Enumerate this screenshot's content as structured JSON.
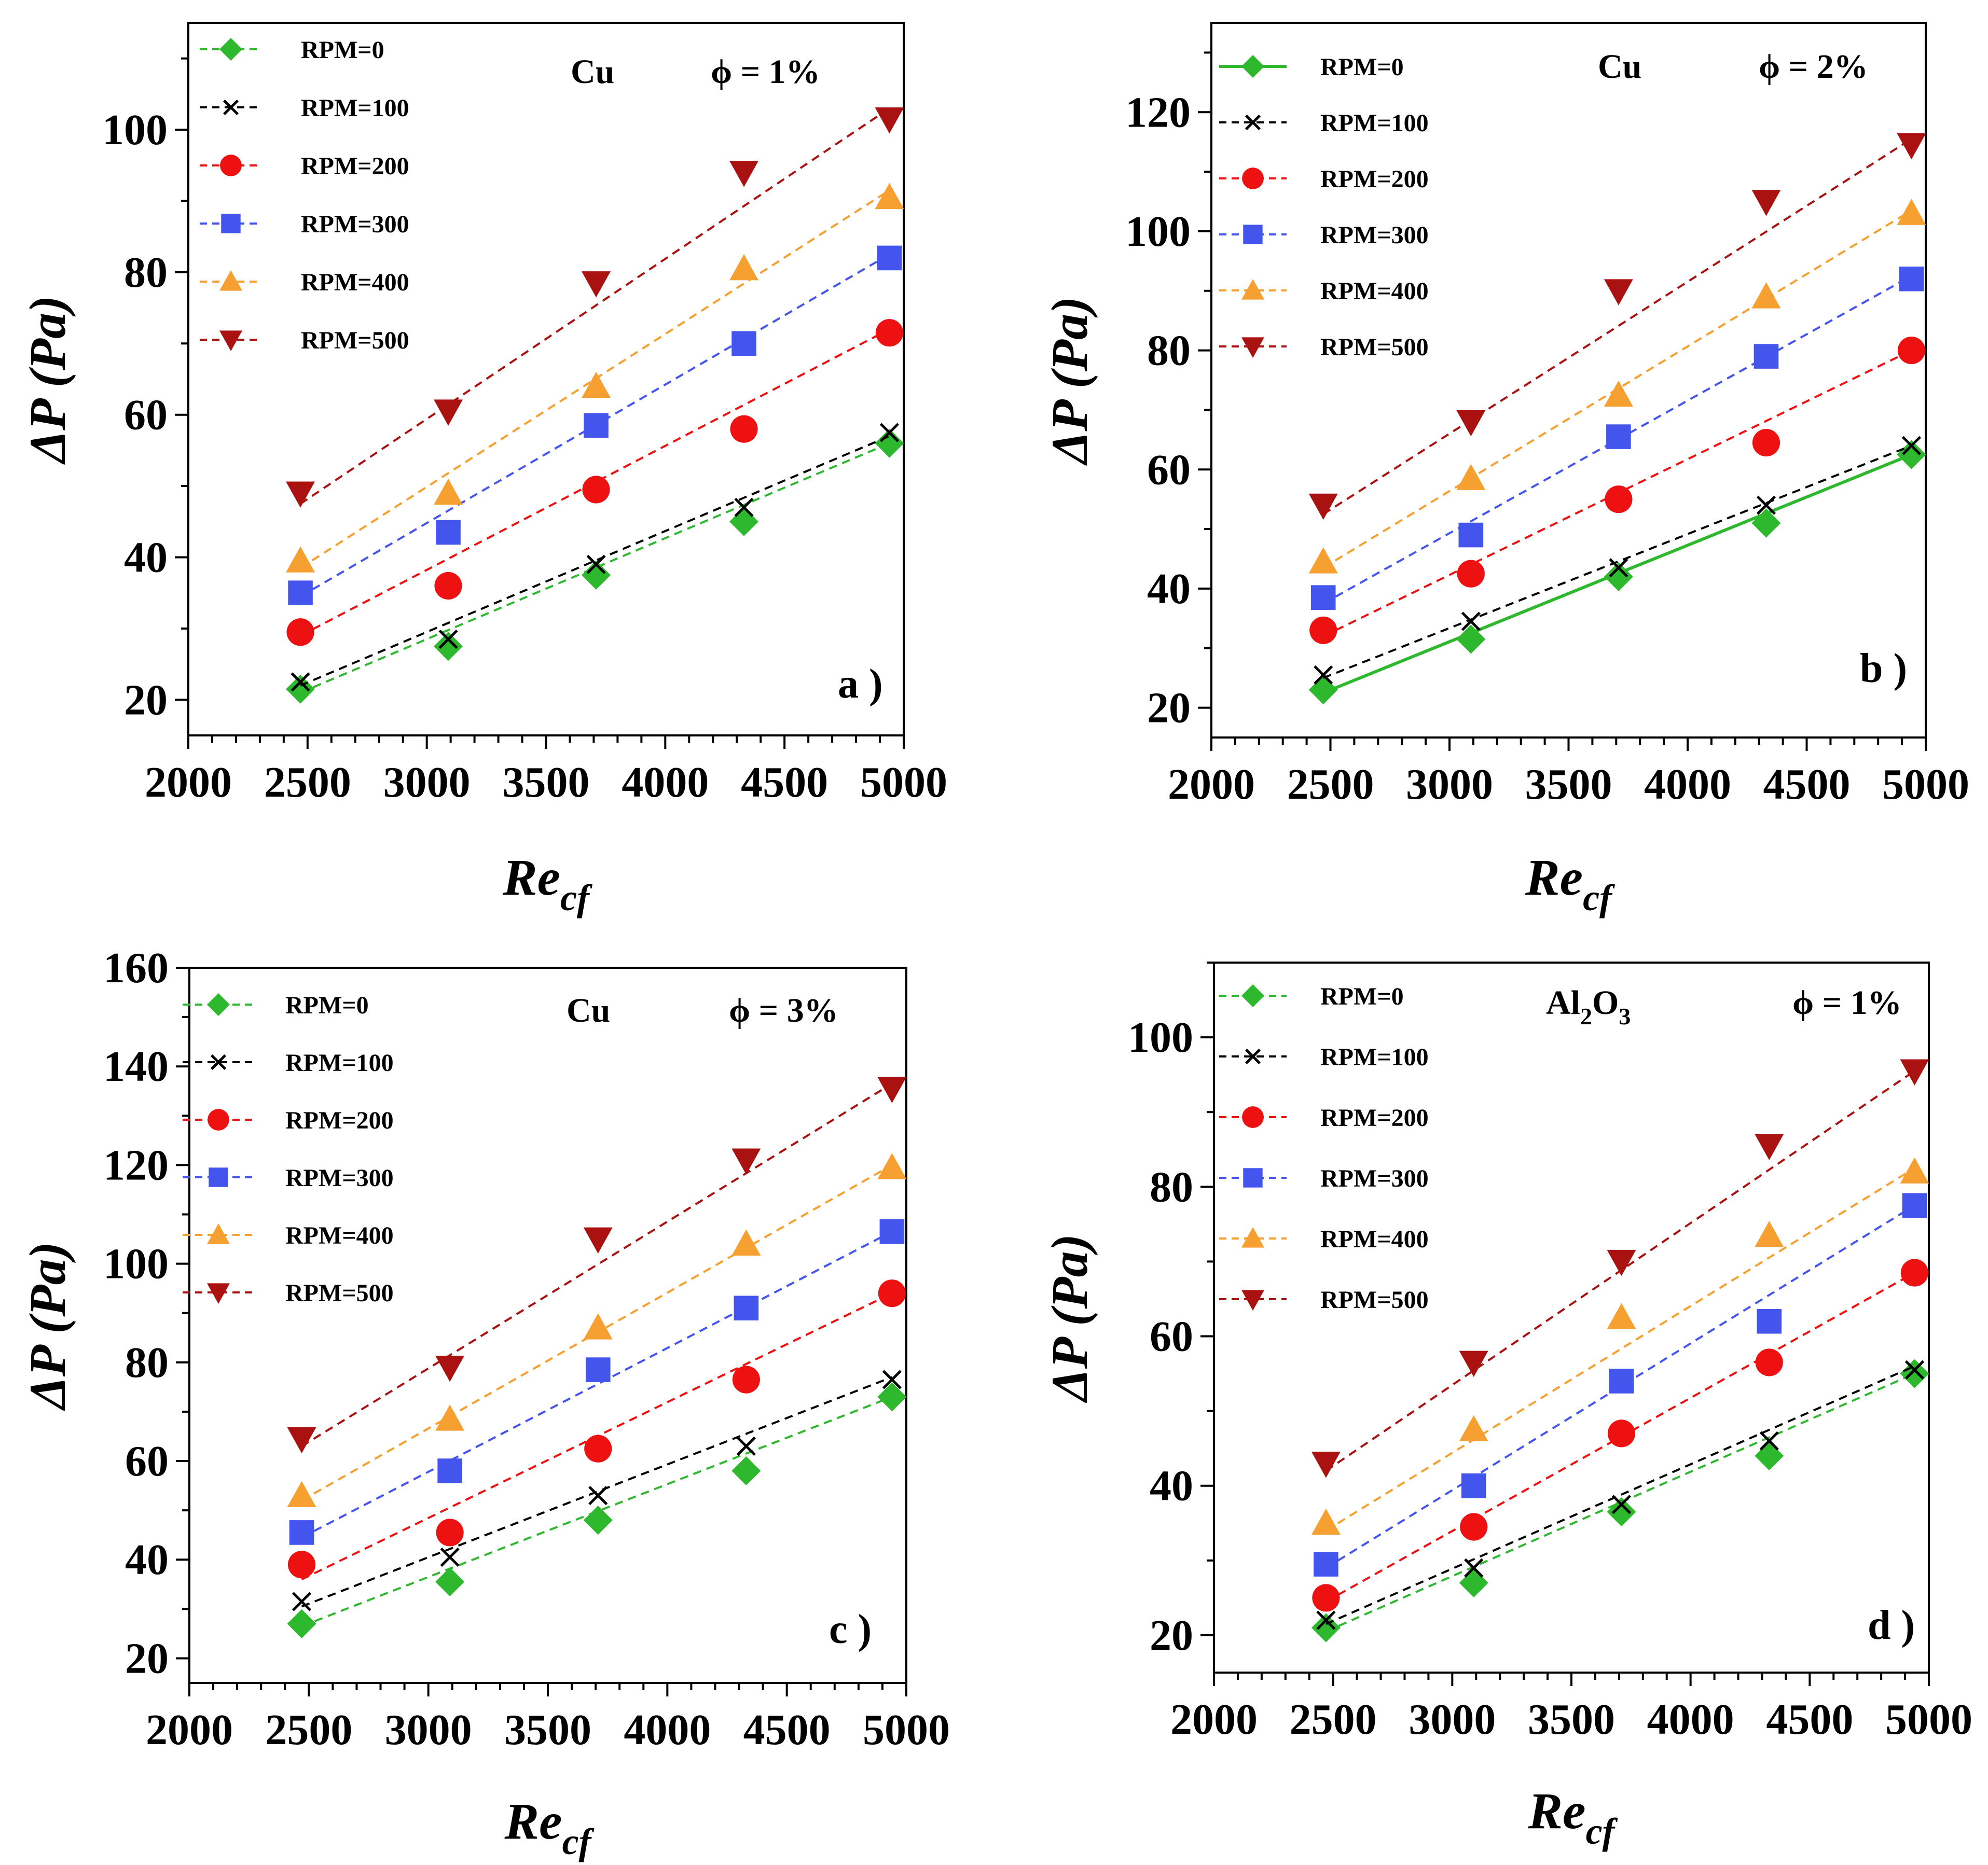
{
  "chart_data": [
    {
      "type": "scatter",
      "panel_label": "a )",
      "material": "Cu",
      "material_sub": "",
      "material_tail": "",
      "phi": "ϕ = 1%",
      "xlabel": "Re",
      "xlabel_sub": "cf",
      "ylabel": "ΔP (Pa)",
      "xlim": [
        2000,
        5000
      ],
      "ylim": [
        15,
        115
      ],
      "xticks": [
        2000,
        2500,
        3000,
        3500,
        4000,
        4500,
        5000
      ],
      "yticks": [
        20,
        40,
        60,
        80,
        100
      ],
      "x": [
        2470,
        3090,
        3710,
        4330,
        4940
      ],
      "series": [
        {
          "name": "RPM=0",
          "marker": "diamond",
          "color": "#2eb82e",
          "line": "dashed",
          "values": [
            21.5,
            27.5,
            37.5,
            45.0,
            56.0
          ],
          "fit": [
            21.0,
            56.0
          ]
        },
        {
          "name": "RPM=100",
          "marker": "x",
          "color": "#000000",
          "line": "dashed",
          "values": [
            22.5,
            28.5,
            39.0,
            47.0,
            57.5
          ],
          "fit": [
            22.0,
            57.0
          ]
        },
        {
          "name": "RPM=200",
          "marker": "circle",
          "color": "#ee1111",
          "line": "dashed",
          "values": [
            29.5,
            36.0,
            49.5,
            58.0,
            71.5
          ],
          "fit": [
            29.0,
            72.0
          ]
        },
        {
          "name": "RPM=300",
          "marker": "square",
          "color": "#4455ee",
          "line": "dashed",
          "values": [
            35.0,
            43.5,
            58.5,
            70.0,
            82.0
          ],
          "fit": [
            34.5,
            82.5
          ]
        },
        {
          "name": "RPM=400",
          "marker": "triangle-up",
          "color": "#f5a030",
          "line": "dashed",
          "values": [
            39.5,
            49.0,
            64.0,
            80.5,
            90.5
          ],
          "fit": [
            38.5,
            91.5
          ]
        },
        {
          "name": "RPM=500",
          "marker": "triangle-down",
          "color": "#aa1111",
          "line": "dashed",
          "values": [
            49.0,
            60.5,
            78.5,
            94.0,
            101.5
          ],
          "fit": [
            47.5,
            103.0
          ]
        }
      ]
    },
    {
      "type": "scatter",
      "panel_label": "b )",
      "material": "Cu",
      "material_sub": "",
      "material_tail": "",
      "phi": "ϕ = 2%",
      "xlabel": "Re",
      "xlabel_sub": "cf",
      "ylabel": "ΔP (Pa)",
      "xlim": [
        2000,
        5000
      ],
      "ylim": [
        15,
        135
      ],
      "xticks": [
        2000,
        2500,
        3000,
        3500,
        4000,
        4500,
        5000
      ],
      "yticks": [
        20,
        40,
        60,
        80,
        100,
        120
      ],
      "x": [
        2470,
        3090,
        3710,
        4330,
        4940
      ],
      "series": [
        {
          "name": "RPM=0",
          "marker": "diamond",
          "color": "#2eb82e",
          "line": "solid",
          "values": [
            23.0,
            31.5,
            42.0,
            51.0,
            62.5
          ],
          "fit": [
            22.5,
            62.5
          ]
        },
        {
          "name": "RPM=100",
          "marker": "x",
          "color": "#000000",
          "line": "dashed",
          "values": [
            25.5,
            34.5,
            43.5,
            54.0,
            64.0
          ],
          "fit": [
            25.0,
            64.0
          ]
        },
        {
          "name": "RPM=200",
          "marker": "circle",
          "color": "#ee1111",
          "line": "dashed",
          "values": [
            33.0,
            42.5,
            55.0,
            64.5,
            80.0
          ],
          "fit": [
            32.0,
            80.0
          ]
        },
        {
          "name": "RPM=300",
          "marker": "square",
          "color": "#4455ee",
          "line": "dashed",
          "values": [
            38.5,
            49.0,
            65.5,
            79.0,
            92.0
          ],
          "fit": [
            37.5,
            92.5
          ]
        },
        {
          "name": "RPM=400",
          "marker": "triangle-up",
          "color": "#f5a030",
          "line": "dashed",
          "values": [
            44.5,
            58.5,
            72.5,
            89.0,
            103.0
          ],
          "fit": [
            43.5,
            103.5
          ]
        },
        {
          "name": "RPM=500",
          "marker": "triangle-down",
          "color": "#aa1111",
          "line": "dashed",
          "values": [
            54.0,
            68.0,
            90.0,
            105.0,
            114.5
          ],
          "fit": [
            52.5,
            115.5
          ]
        }
      ]
    },
    {
      "type": "scatter",
      "panel_label": "c )",
      "material": "Cu",
      "material_sub": "",
      "material_tail": "",
      "phi": "ϕ = 3%",
      "xlabel": "Re",
      "xlabel_sub": "cf",
      "ylabel": "ΔP (Pa)",
      "xlim": [
        2000,
        5000
      ],
      "ylim": [
        15,
        160
      ],
      "xticks": [
        2000,
        2500,
        3000,
        3500,
        4000,
        4500,
        5000
      ],
      "yticks": [
        20,
        40,
        60,
        80,
        100,
        120,
        140,
        160
      ],
      "x": [
        2470,
        3090,
        3710,
        4330,
        4940
      ],
      "series": [
        {
          "name": "RPM=0",
          "marker": "diamond",
          "color": "#2eb82e",
          "line": "dashed",
          "values": [
            27.0,
            35.5,
            48.0,
            58.0,
            73.0
          ],
          "fit": [
            26.5,
            73.0
          ]
        },
        {
          "name": "RPM=100",
          "marker": "x",
          "color": "#000000",
          "line": "dashed",
          "values": [
            31.5,
            40.5,
            53.0,
            63.0,
            76.5
          ],
          "fit": [
            30.5,
            77.0
          ]
        },
        {
          "name": "RPM=200",
          "marker": "circle",
          "color": "#ee1111",
          "line": "dashed",
          "values": [
            39.0,
            45.5,
            62.5,
            76.5,
            94.0
          ],
          "fit": [
            36.0,
            94.0
          ]
        },
        {
          "name": "RPM=300",
          "marker": "square",
          "color": "#4455ee",
          "line": "dashed",
          "values": [
            45.5,
            58.0,
            78.5,
            91.0,
            106.5
          ],
          "fit": [
            44.5,
            106.5
          ]
        },
        {
          "name": "RPM=400",
          "marker": "triangle-up",
          "color": "#f5a030",
          "line": "dashed",
          "values": [
            53.0,
            68.5,
            87.0,
            104.0,
            119.5
          ],
          "fit": [
            52.0,
            120.0
          ]
        },
        {
          "name": "RPM=500",
          "marker": "triangle-down",
          "color": "#aa1111",
          "line": "dashed",
          "values": [
            64.5,
            79.0,
            105.0,
            121.0,
            135.5
          ],
          "fit": [
            63.0,
            136.5
          ]
        }
      ]
    },
    {
      "type": "scatter",
      "panel_label": "d )",
      "material": "Al",
      "material_sub": "2",
      "material_tail": "O",
      "material_sub2": "3",
      "phi": "ϕ = 1%",
      "xlabel": "Re",
      "xlabel_sub": "cf",
      "ylabel": "ΔP (Pa)",
      "xlim": [
        2000,
        5000
      ],
      "ylim": [
        15,
        110
      ],
      "xticks": [
        2000,
        2500,
        3000,
        3500,
        4000,
        4500,
        5000
      ],
      "yticks": [
        20,
        40,
        60,
        80,
        100
      ],
      "x": [
        2470,
        3090,
        3710,
        4330,
        4940
      ],
      "series": [
        {
          "name": "RPM=0",
          "marker": "diamond",
          "color": "#2eb82e",
          "line": "dashed",
          "values": [
            21.0,
            27.0,
            36.5,
            44.0,
            55.0
          ],
          "fit": [
            20.5,
            55.0
          ]
        },
        {
          "name": "RPM=100",
          "marker": "x",
          "color": "#000000",
          "line": "dashed",
          "values": [
            22.0,
            29.0,
            37.5,
            46.0,
            55.5
          ],
          "fit": [
            21.5,
            56.0
          ]
        },
        {
          "name": "RPM=200",
          "marker": "circle",
          "color": "#ee1111",
          "line": "dashed",
          "values": [
            25.0,
            34.5,
            47.0,
            56.5,
            68.5
          ],
          "fit": [
            24.5,
            68.5
          ]
        },
        {
          "name": "RPM=300",
          "marker": "square",
          "color": "#4455ee",
          "line": "dashed",
          "values": [
            29.5,
            40.0,
            54.0,
            62.0,
            77.5
          ],
          "fit": [
            29.0,
            77.5
          ]
        },
        {
          "name": "RPM=400",
          "marker": "triangle-up",
          "color": "#f5a030",
          "line": "dashed",
          "values": [
            35.0,
            47.5,
            62.5,
            73.5,
            82.0
          ],
          "fit": [
            34.0,
            82.5
          ]
        },
        {
          "name": "RPM=500",
          "marker": "triangle-down",
          "color": "#aa1111",
          "line": "dashed",
          "values": [
            43.0,
            56.5,
            70.0,
            85.5,
            95.5
          ],
          "fit": [
            42.0,
            95.5
          ]
        }
      ]
    }
  ]
}
